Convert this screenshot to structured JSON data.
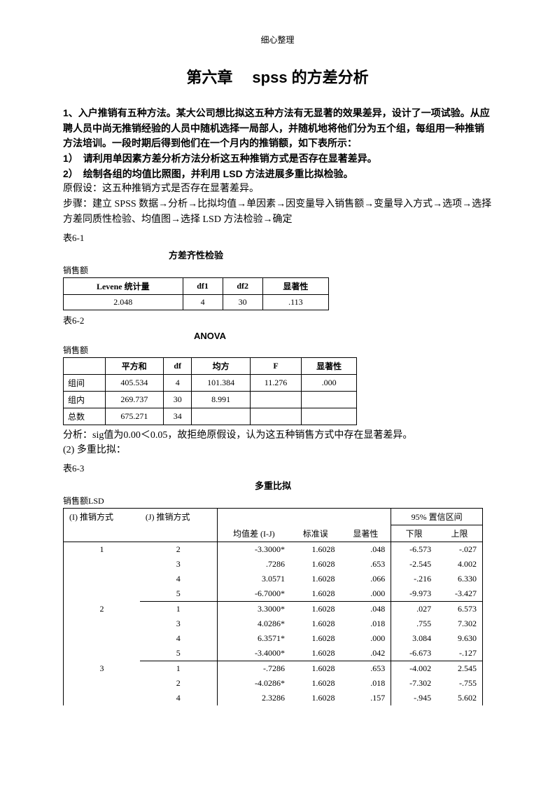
{
  "header": "细心整理",
  "title": "第六章　 spss 的方差分析",
  "intro": {
    "p1": "1、入户推销有五种方法。某大公司想比拟这五种方法有无显著的效果差异，设计了一项试验。从应聘人员中尚无推销经验的人员中随机选择一局部人，并随机地将他们分为五个组，每组用一种推销方法培训。一段时期后得到他们在一个月内的推销额，如下表所示：",
    "p2": "1）　请利用单因素方差分析方法分析这五种推销方式是否存在显著差异。",
    "p3": "2）　绘制各组的均值比照图，并利用 LSD 方法进展多重比拟检验。",
    "p4": "原假设：这五种推销方式是否存在显著差异。",
    "p5": "步骤：建立 SPSS 数据→分析→比拟均值→单因素→因变量导入销售额→变量导入方式→选项→选择方差同质性检验、均值图→选择 LSD 方法检验→确定"
  },
  "t61": {
    "caption": "表6-1",
    "title": "方差齐性检验",
    "sub": "销售额",
    "headers": [
      "Levene 统计量",
      "df1",
      "df2",
      "显著性"
    ],
    "row": [
      "2.048",
      "4",
      "30",
      ".113"
    ]
  },
  "t62": {
    "caption": "表6-2",
    "title": "ANOVA",
    "sub": "销售额",
    "headers": [
      "",
      "平方和",
      "df",
      "均方",
      "F",
      "显著性"
    ],
    "rows": [
      [
        "组间",
        "405.534",
        "4",
        "101.384",
        "11.276",
        ".000"
      ],
      [
        "组内",
        "269.737",
        "30",
        "8.991",
        "",
        ""
      ],
      [
        "总数",
        "675.271",
        "34",
        "",
        "",
        ""
      ]
    ]
  },
  "analysis1": "分析：sig值为0.00＜0.05，故拒绝原假设，认为这五种销售方式中存在显著差异。",
  "analysis2": "(2) 多重比拟：",
  "t63": {
    "caption": "表6-3",
    "title": "多重比拟",
    "sub": "销售额LSD",
    "head": {
      "i": "(I) 推销方式",
      "j": "(J) 推销方式",
      "mdiff": "均值差 (I-J)",
      "se": "标准误",
      "sig": "显著性",
      "ci": "95% 置信区间",
      "lo": "下限",
      "hi": "上限"
    },
    "groups": [
      {
        "i": "1",
        "rows": [
          {
            "j": "2",
            "md": "-3.3000*",
            "se": "1.6028",
            "sig": ".048",
            "lo": "-6.573",
            "hi": "-.027"
          },
          {
            "j": "3",
            "md": ".7286",
            "se": "1.6028",
            "sig": ".653",
            "lo": "-2.545",
            "hi": "4.002"
          },
          {
            "j": "4",
            "md": "3.0571",
            "se": "1.6028",
            "sig": ".066",
            "lo": "-.216",
            "hi": "6.330"
          },
          {
            "j": "5",
            "md": "-6.7000*",
            "se": "1.6028",
            "sig": ".000",
            "lo": "-9.973",
            "hi": "-3.427"
          }
        ]
      },
      {
        "i": "2",
        "rows": [
          {
            "j": "1",
            "md": "3.3000*",
            "se": "1.6028",
            "sig": ".048",
            "lo": ".027",
            "hi": "6.573"
          },
          {
            "j": "3",
            "md": "4.0286*",
            "se": "1.6028",
            "sig": ".018",
            "lo": ".755",
            "hi": "7.302"
          },
          {
            "j": "4",
            "md": "6.3571*",
            "se": "1.6028",
            "sig": ".000",
            "lo": "3.084",
            "hi": "9.630"
          },
          {
            "j": "5",
            "md": "-3.4000*",
            "se": "1.6028",
            "sig": ".042",
            "lo": "-6.673",
            "hi": "-.127"
          }
        ]
      },
      {
        "i": "3",
        "rows": [
          {
            "j": "1",
            "md": "-.7286",
            "se": "1.6028",
            "sig": ".653",
            "lo": "-4.002",
            "hi": "2.545"
          },
          {
            "j": "2",
            "md": "-4.0286*",
            "se": "1.6028",
            "sig": ".018",
            "lo": "-7.302",
            "hi": "-.755"
          },
          {
            "j": "4",
            "md": "2.3286",
            "se": "1.6028",
            "sig": ".157",
            "lo": "-.945",
            "hi": "5.602"
          }
        ]
      }
    ]
  }
}
